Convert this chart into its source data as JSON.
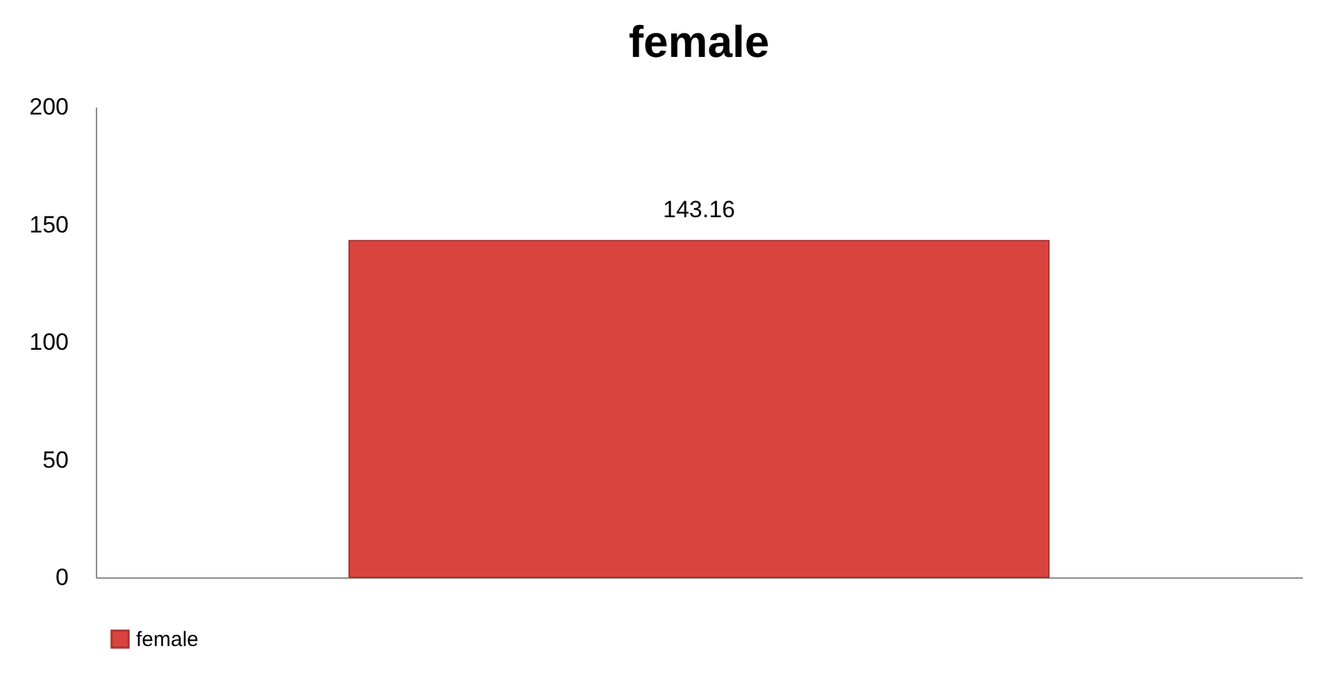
{
  "chart_data": {
    "type": "bar",
    "title": "female",
    "categories": [
      null
    ],
    "series": [
      {
        "name": "female",
        "color": "#d9443f",
        "values": [
          143.16
        ]
      }
    ],
    "ylim": [
      0,
      200
    ],
    "yticks": [
      0,
      50,
      100,
      150,
      200
    ],
    "grid": false,
    "legend": "bottom",
    "data_labels": true
  }
}
